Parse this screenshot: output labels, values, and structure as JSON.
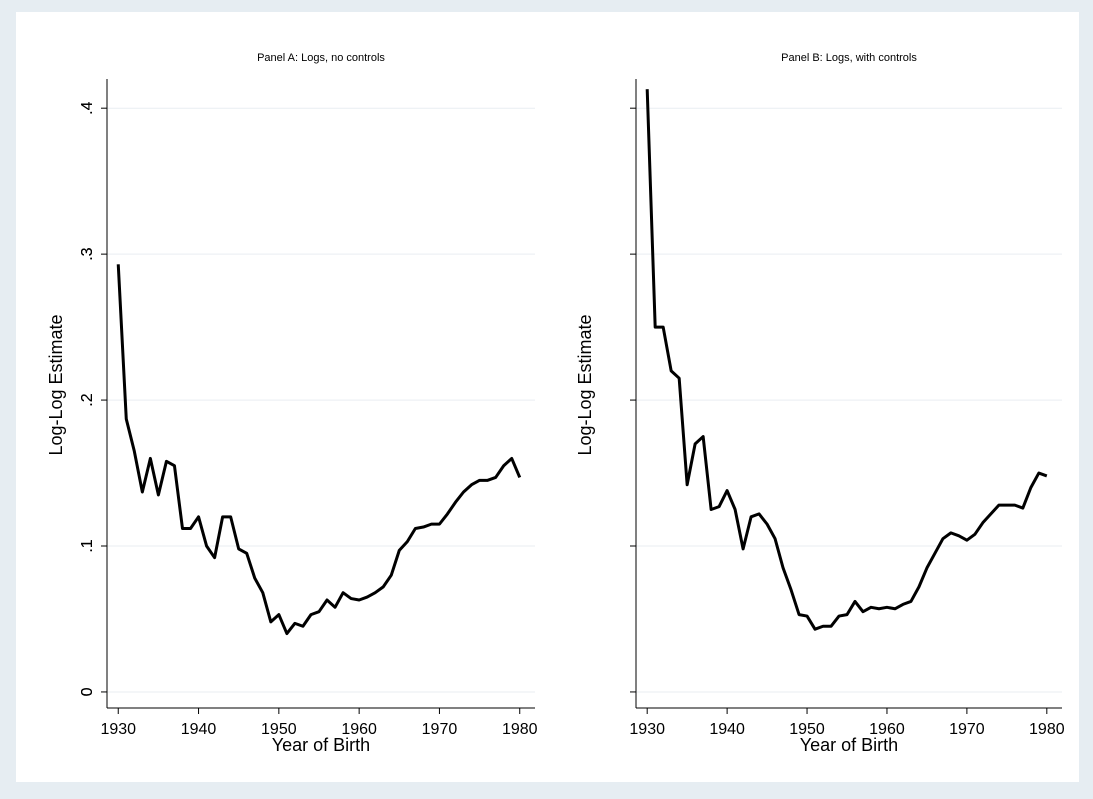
{
  "chart_data": [
    {
      "type": "line",
      "title": "Panel A: Logs, no controls",
      "x_label": "Year of Birth",
      "y_label": "Log-Log Estimate",
      "x": [
        1930,
        1931,
        1932,
        1933,
        1934,
        1935,
        1936,
        1937,
        1938,
        1939,
        1940,
        1941,
        1942,
        1943,
        1944,
        1945,
        1946,
        1947,
        1948,
        1949,
        1950,
        1951,
        1952,
        1953,
        1954,
        1955,
        1956,
        1957,
        1958,
        1959,
        1960,
        1961,
        1962,
        1963,
        1964,
        1965,
        1966,
        1967,
        1968,
        1969,
        1970,
        1971,
        1972,
        1973,
        1974,
        1975,
        1976,
        1977,
        1978,
        1979,
        1980
      ],
      "values": [
        0.293,
        0.187,
        0.165,
        0.137,
        0.16,
        0.135,
        0.158,
        0.155,
        0.112,
        0.112,
        0.12,
        0.1,
        0.092,
        0.12,
        0.12,
        0.098,
        0.095,
        0.078,
        0.068,
        0.048,
        0.053,
        0.04,
        0.047,
        0.045,
        0.053,
        0.055,
        0.063,
        0.058,
        0.068,
        0.064,
        0.063,
        0.065,
        0.068,
        0.072,
        0.08,
        0.097,
        0.103,
        0.112,
        0.113,
        0.115,
        0.115,
        0.122,
        0.13,
        0.137,
        0.142,
        0.145,
        0.145,
        0.147,
        0.155,
        0.16,
        0.147
      ],
      "color": "#000000",
      "xlim": [
        1928.6,
        1981.9
      ],
      "ylim": [
        -0.011,
        0.42
      ],
      "xticks": [
        1930,
        1940,
        1950,
        1960,
        1970,
        1980
      ],
      "yticks": [
        0,
        {
          "value": 0.1,
          "label": ".1"
        },
        {
          "value": 0.2,
          "label": ".2"
        },
        {
          "value": 0.3,
          "label": ".3"
        },
        {
          "value": 0.4,
          "label": ".4"
        }
      ],
      "grid": true
    },
    {
      "type": "line",
      "title": "Panel B: Logs, with controls",
      "x_label": "Year of Birth",
      "y_label": "Log-Log Estimate",
      "x": [
        1930,
        1931,
        1932,
        1933,
        1934,
        1935,
        1936,
        1937,
        1938,
        1939,
        1940,
        1941,
        1942,
        1943,
        1944,
        1945,
        1946,
        1947,
        1948,
        1949,
        1950,
        1951,
        1952,
        1953,
        1954,
        1955,
        1956,
        1957,
        1958,
        1959,
        1960,
        1961,
        1962,
        1963,
        1964,
        1965,
        1966,
        1967,
        1968,
        1969,
        1970,
        1971,
        1972,
        1973,
        1974,
        1975,
        1976,
        1977,
        1978,
        1979,
        1980
      ],
      "values": [
        0.413,
        0.25,
        0.25,
        0.22,
        0.215,
        0.142,
        0.17,
        0.175,
        0.125,
        0.127,
        0.138,
        0.125,
        0.098,
        0.12,
        0.122,
        0.115,
        0.105,
        0.085,
        0.07,
        0.053,
        0.052,
        0.043,
        0.045,
        0.045,
        0.052,
        0.053,
        0.062,
        0.055,
        0.058,
        0.057,
        0.058,
        0.057,
        0.06,
        0.062,
        0.072,
        0.085,
        0.095,
        0.105,
        0.109,
        0.107,
        0.104,
        0.108,
        0.116,
        0.122,
        0.128,
        0.128,
        0.128,
        0.126,
        0.14,
        0.15,
        0.148
      ],
      "color": "#000000",
      "xlim": [
        1928.6,
        1981.9
      ],
      "ylim": [
        -0.011,
        0.42
      ],
      "xticks": [
        1930,
        1940,
        1950,
        1960,
        1970,
        1980
      ],
      "yticks": [
        0,
        {
          "value": 0.1,
          "label": ".1"
        },
        {
          "value": 0.2,
          "label": ".2"
        },
        {
          "value": 0.3,
          "label": ".3"
        },
        {
          "value": 0.4,
          "label": ".4"
        }
      ],
      "grid": true
    }
  ]
}
